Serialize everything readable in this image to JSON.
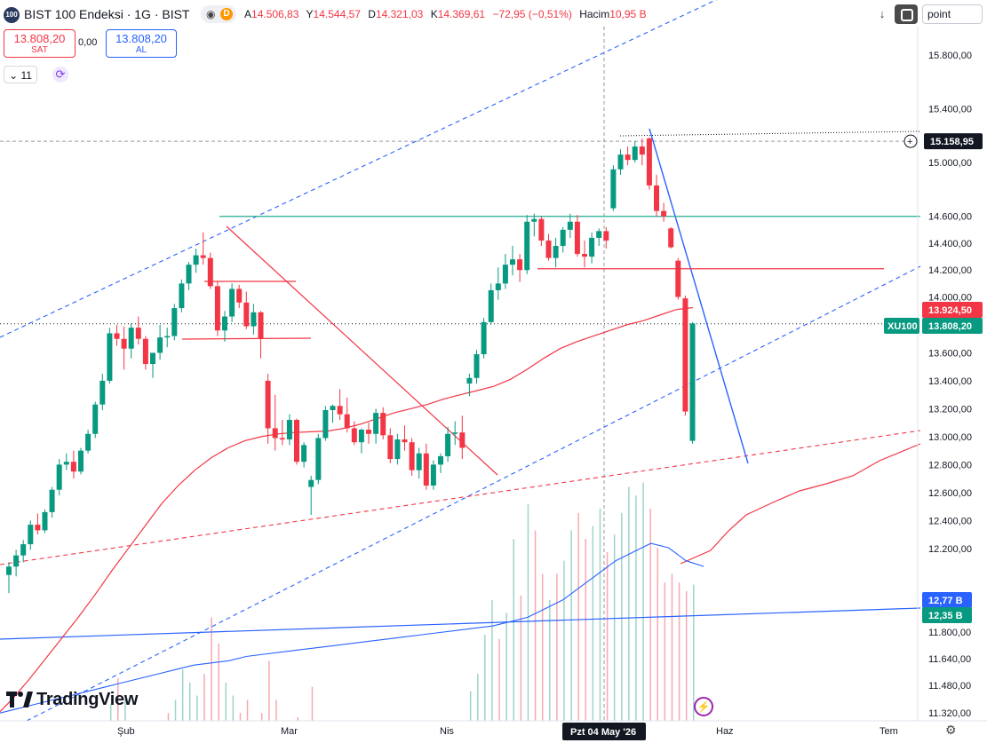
{
  "header": {
    "logo_text": "100",
    "title": "BIST 100 Endeksi · 1G · BIST",
    "eye_icon": "eye-icon",
    "data_badge": "D",
    "ohlc": {
      "open_label": "A",
      "open": "14.506,83",
      "high_label": "Y",
      "high": "14.544,57",
      "low_label": "D",
      "low": "14.321,03",
      "close_label": "K",
      "close": "14.369,61",
      "change": "−72,95 (−0,51%)",
      "volume_label": "Hacim",
      "volume": "10,95 B"
    },
    "arrow_icon": "arrow-down-icon",
    "fullscreen_icon": "fullscreen-icon",
    "search_value": "point"
  },
  "trade": {
    "sell_price": "13.808,20",
    "sell_label": "SAT",
    "spread": "0,00",
    "buy_price": "13.808,20",
    "buy_label": "AL"
  },
  "indicators": {
    "count": "11",
    "toggle_icon": "chevron-down-icon",
    "refresh_icon": "refresh-icon"
  },
  "branding": {
    "logo": "TradingView"
  },
  "colors": {
    "up": "#089981",
    "down": "#f23645",
    "ma": "#f23645",
    "blue": "#2962ff",
    "volume_up": "#9fd3ca",
    "volume_down": "#f6a9b1",
    "volume_ma": "#2962ff",
    "hline": "#22ab94"
  },
  "chart_data": {
    "type": "candlestick",
    "symbol": "XU100",
    "y_axis_ticks": [
      "15.800,00",
      "15.400,00",
      "15.000,00",
      "14.600,00",
      "14.400,00",
      "14.200,00",
      "14.000,00",
      "13.600,00",
      "13.400,00",
      "13.200,00",
      "13.000,00",
      "12.800,00",
      "12.600,00",
      "12.400,00",
      "12.200,00",
      "11.800,00",
      "11.640,00",
      "11.480,00",
      "11.320,00"
    ],
    "y_axis_values": [
      15800,
      15400,
      15000,
      14600,
      14400,
      14200,
      14000,
      13600,
      13400,
      13200,
      13000,
      12800,
      12600,
      12400,
      12200,
      11800,
      11640,
      11480,
      11320
    ],
    "x_axis_labels": [
      "Şub",
      "Mar",
      "Nis",
      "Haz",
      "Tem"
    ],
    "crosshair_label": "Pzt 04 May '26",
    "price_labels": {
      "crosshair_price": "15.158,95",
      "ma_value": "13.924,50",
      "last_price": "13.808,20",
      "last_symbol": "XU100",
      "volume_ma": "12,77 B",
      "volume_last": "12,35 B"
    },
    "candles": [
      [
        12010,
        12100,
        11880,
        12070
      ],
      [
        12070,
        12190,
        12000,
        12150
      ],
      [
        12150,
        12260,
        12100,
        12230
      ],
      [
        12230,
        12400,
        12190,
        12370
      ],
      [
        12370,
        12450,
        12300,
        12330
      ],
      [
        12330,
        12480,
        12310,
        12460
      ],
      [
        12460,
        12640,
        12420,
        12620
      ],
      [
        12620,
        12840,
        12580,
        12800
      ],
      [
        12800,
        12880,
        12760,
        12820
      ],
      [
        12820,
        12900,
        12700,
        12750
      ],
      [
        12750,
        12920,
        12730,
        12900
      ],
      [
        12900,
        13050,
        12880,
        13020
      ],
      [
        13020,
        13250,
        12990,
        13230
      ],
      [
        13230,
        13450,
        13190,
        13400
      ],
      [
        13400,
        13780,
        13380,
        13740
      ],
      [
        13740,
        13800,
        13650,
        13700
      ],
      [
        13700,
        13790,
        13480,
        13630
      ],
      [
        13630,
        13810,
        13560,
        13780
      ],
      [
        13780,
        13860,
        13660,
        13700
      ],
      [
        13700,
        13720,
        13480,
        13520
      ],
      [
        13520,
        13600,
        13420,
        13600
      ],
      [
        13600,
        13800,
        13550,
        13710
      ],
      [
        13710,
        13780,
        13640,
        13720
      ],
      [
        13720,
        13950,
        13690,
        13920
      ],
      [
        13920,
        14130,
        13890,
        14100
      ],
      [
        14100,
        14260,
        14050,
        14240
      ],
      [
        14240,
        14360,
        14180,
        14310
      ],
      [
        14310,
        14480,
        14240,
        14290
      ],
      [
        14290,
        14330,
        14060,
        14080
      ],
      [
        14080,
        14120,
        13720,
        13760
      ],
      [
        13760,
        13900,
        13680,
        13860
      ],
      [
        13860,
        14100,
        13820,
        14060
      ],
      [
        14060,
        14090,
        13920,
        13960
      ],
      [
        13960,
        14040,
        13770,
        13790
      ],
      [
        13790,
        13950,
        13730,
        13890
      ],
      [
        13890,
        13900,
        13560,
        13700
      ],
      [
        13400,
        13450,
        12950,
        13060
      ],
      [
        13060,
        13300,
        12900,
        12990
      ],
      [
        12990,
        13120,
        12940,
        12980
      ],
      [
        12980,
        13160,
        12940,
        13120
      ],
      [
        13120,
        13130,
        12800,
        12820
      ],
      [
        12820,
        12960,
        12780,
        12940
      ],
      [
        12640,
        12720,
        12440,
        12690
      ],
      [
        12690,
        13020,
        12660,
        12990
      ],
      [
        12990,
        13220,
        12970,
        13190
      ],
      [
        13190,
        13230,
        13100,
        13220
      ],
      [
        13220,
        13340,
        13120,
        13160
      ],
      [
        13160,
        13280,
        13030,
        13060
      ],
      [
        13060,
        13110,
        12940,
        12960
      ],
      [
        12960,
        13060,
        12880,
        13050
      ],
      [
        13050,
        13100,
        12950,
        13020
      ],
      [
        13020,
        13200,
        12950,
        13170
      ],
      [
        13170,
        13210,
        12980,
        13010
      ],
      [
        13010,
        13060,
        12810,
        12840
      ],
      [
        12840,
        13020,
        12800,
        12980
      ],
      [
        12980,
        13080,
        12900,
        12960
      ],
      [
        12960,
        12990,
        12720,
        12760
      ],
      [
        12760,
        12920,
        12700,
        12880
      ],
      [
        12880,
        12950,
        12620,
        12650
      ],
      [
        12650,
        12830,
        12620,
        12800
      ],
      [
        12800,
        12880,
        12740,
        12860
      ],
      [
        12860,
        13070,
        12820,
        13020
      ],
      [
        13020,
        13110,
        12940,
        13030
      ],
      [
        13030,
        13150,
        12840,
        12920
      ],
      [
        13380,
        13450,
        13290,
        13420
      ],
      [
        13420,
        13620,
        13380,
        13590
      ],
      [
        13590,
        13850,
        13560,
        13820
      ],
      [
        13820,
        14100,
        13800,
        14050
      ],
      [
        14050,
        14220,
        13980,
        14100
      ],
      [
        14100,
        14320,
        14060,
        14240
      ],
      [
        14240,
        14380,
        14160,
        14280
      ],
      [
        14280,
        14320,
        14110,
        14200
      ],
      [
        14200,
        14610,
        14170,
        14560
      ],
      [
        14560,
        14620,
        14450,
        14580
      ],
      [
        14580,
        14600,
        14380,
        14420
      ],
      [
        14420,
        14470,
        14270,
        14290
      ],
      [
        14290,
        14440,
        14220,
        14380
      ],
      [
        14380,
        14520,
        14330,
        14500
      ],
      [
        14500,
        14620,
        14440,
        14560
      ],
      [
        14560,
        14610,
        14300,
        14320
      ],
      [
        14320,
        14420,
        14220,
        14300
      ],
      [
        14300,
        14480,
        14250,
        14440
      ],
      [
        14440,
        14510,
        14380,
        14490
      ],
      [
        14490,
        14520,
        14360,
        14420
      ],
      [
        14660,
        14980,
        14640,
        14950
      ],
      [
        14950,
        15100,
        14910,
        15060
      ],
      [
        15060,
        15120,
        14980,
        15020
      ],
      [
        15020,
        15160,
        15000,
        15120
      ],
      [
        15120,
        15180,
        14980,
        15060
      ],
      [
        15180,
        15190,
        14800,
        14830
      ],
      [
        14830,
        14910,
        14600,
        14640
      ],
      [
        14640,
        14700,
        14560,
        14600
      ],
      [
        14510,
        14520,
        14360,
        14370
      ],
      [
        14270,
        14290,
        13980,
        14000
      ],
      [
        13990,
        14010,
        13150,
        13180
      ],
      [
        12970,
        13820,
        12950,
        13810
      ]
    ],
    "ma_series": [
      11000,
      11120,
      11260,
      11410,
      11560,
      11710,
      11870,
      12040,
      12200,
      12360,
      12520,
      12650,
      12760,
      12850,
      12920,
      12970,
      13000,
      13020,
      13030,
      13035,
      13040,
      13060,
      13090,
      13130,
      13170,
      13200,
      13230,
      13270,
      13300,
      13330,
      13360,
      13410,
      13480,
      13560,
      13630,
      13680,
      13720,
      13760,
      13800,
      13830,
      13870,
      13910,
      13924
    ],
    "volume_bars": [
      [
        7.2,
        1
      ],
      [
        6.9,
        1
      ],
      [
        6.8,
        1
      ],
      [
        6.5,
        1
      ],
      [
        6.7,
        0
      ],
      [
        6.9,
        1
      ],
      [
        7.1,
        1
      ],
      [
        7.6,
        1
      ],
      [
        7.9,
        0
      ],
      [
        7.6,
        1
      ],
      [
        8.1,
        1
      ],
      [
        8.7,
        1
      ],
      [
        9.2,
        1
      ],
      [
        9.0,
        1
      ],
      [
        9.6,
        1
      ],
      [
        10.2,
        0
      ],
      [
        9.7,
        1
      ],
      [
        8.9,
        1
      ],
      [
        8.4,
        0
      ],
      [
        8.6,
        0
      ],
      [
        8.3,
        1
      ],
      [
        8.9,
        1
      ],
      [
        9.4,
        0
      ],
      [
        9.7,
        1
      ],
      [
        10.4,
        1
      ],
      [
        10.1,
        1
      ],
      [
        9.8,
        1
      ],
      [
        10.3,
        0
      ],
      [
        11.6,
        0
      ],
      [
        11.0,
        0
      ],
      [
        10.1,
        1
      ],
      [
        9.8,
        1
      ],
      [
        9.4,
        0
      ],
      [
        9.7,
        0
      ],
      [
        8.9,
        1
      ],
      [
        9.4,
        0
      ],
      [
        10.6,
        0
      ],
      [
        9.7,
        0
      ],
      [
        8.9,
        1
      ],
      [
        8.7,
        0
      ],
      [
        9.3,
        0
      ],
      [
        9.2,
        1
      ],
      [
        10.0,
        0
      ],
      [
        9.2,
        1
      ],
      [
        8.4,
        1
      ],
      [
        8.1,
        1
      ],
      [
        7.6,
        0
      ],
      [
        7.9,
        1
      ],
      [
        8.2,
        0
      ],
      [
        7.4,
        0
      ],
      [
        7.6,
        1
      ],
      [
        7.8,
        0
      ],
      [
        7.1,
        0
      ],
      [
        7.5,
        0
      ],
      [
        7.7,
        1
      ],
      [
        7.3,
        1
      ],
      [
        7.9,
        0
      ],
      [
        7.4,
        1
      ],
      [
        8.3,
        0
      ],
      [
        7.6,
        1
      ],
      [
        8.0,
        1
      ],
      [
        8.9,
        1
      ],
      [
        9.1,
        0
      ],
      [
        8.6,
        1
      ],
      [
        9.9,
        1
      ],
      [
        10.3,
        1
      ],
      [
        11.2,
        1
      ],
      [
        12.0,
        1
      ],
      [
        11.1,
        0
      ],
      [
        11.7,
        1
      ],
      [
        13.4,
        1
      ],
      [
        12.1,
        0
      ],
      [
        14.2,
        1
      ],
      [
        13.6,
        0
      ],
      [
        12.6,
        0
      ],
      [
        12.0,
        1
      ],
      [
        12.6,
        0
      ],
      [
        12.9,
        1
      ],
      [
        13.6,
        1
      ],
      [
        14.0,
        0
      ],
      [
        13.4,
        0
      ],
      [
        13.7,
        1
      ],
      [
        14.1,
        1
      ],
      [
        13.1,
        0
      ],
      [
        13.5,
        1
      ],
      [
        14.0,
        1
      ],
      [
        14.6,
        1
      ],
      [
        14.4,
        1
      ],
      [
        14.7,
        1
      ],
      [
        14.1,
        0
      ],
      [
        13.2,
        0
      ],
      [
        12.4,
        0
      ],
      [
        12.6,
        0
      ],
      [
        12.4,
        0
      ],
      [
        12.2,
        0
      ],
      [
        12.35,
        1
      ]
    ],
    "volume_ma_series": [
      9.4,
      9.5,
      9.6,
      9.7,
      9.8,
      9.9,
      10.0,
      10.1,
      10.2,
      10.3,
      10.4,
      10.5,
      10.55,
      10.6,
      10.7,
      10.75,
      10.8,
      10.85,
      10.9,
      10.95,
      11.0,
      11.05,
      11.1,
      11.15,
      11.2,
      11.25,
      11.3,
      11.35,
      11.4,
      11.5,
      11.6,
      11.8,
      12.0,
      12.3,
      12.6,
      12.9,
      13.1,
      13.3,
      13.2,
      12.9,
      12.77
    ],
    "trendlines": [
      "channel upper",
      "channel middle",
      "channel lower",
      "descending resistance",
      "support",
      "downtrend"
    ]
  }
}
